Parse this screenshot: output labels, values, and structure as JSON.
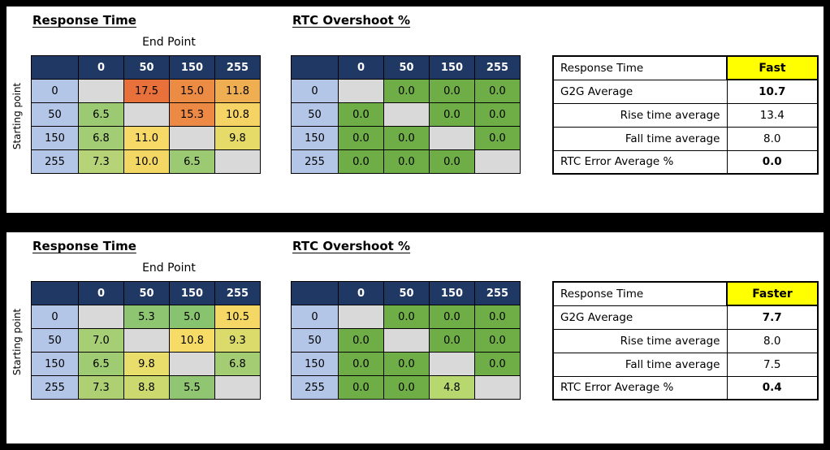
{
  "chart_data": {
    "type": "heatmap",
    "axis_labels": [
      "0",
      "50",
      "150",
      "255"
    ],
    "colors": {
      "header_bg": "#203864",
      "row_label_bg": "#B4C6E7",
      "diagonal_bg": "#D9D9D9",
      "rtc_green": "#6FAD47",
      "grade_bg": "#FFFF00"
    },
    "panels": [
      {
        "rt_title": "Response Time",
        "rtc_title": "RTC Overshoot %",
        "end_point_label": "End Point",
        "starting_point_label": "Starting point",
        "response_time_matrix": {
          "rows": [
            {
              "label": "0",
              "cells": [
                null,
                {
                  "v": "17.5",
                  "c": "#E8703A"
                },
                {
                  "v": "15.0",
                  "c": "#EC8B44"
                },
                {
                  "v": "11.8",
                  "c": "#EFAE52"
                }
              ]
            },
            {
              "label": "50",
              "cells": [
                {
                  "v": "6.5",
                  "c": "#9CCA73"
                },
                null,
                {
                  "v": "15.3",
                  "c": "#EC8944"
                },
                {
                  "v": "10.8",
                  "c": "#F5D364"
                }
              ]
            },
            {
              "label": "150",
              "cells": [
                {
                  "v": "6.8",
                  "c": "#A3CD75"
                },
                {
                  "v": "11.0",
                  "c": "#F6D966"
                },
                null,
                {
                  "v": "9.8",
                  "c": "#E6DA69"
                }
              ]
            },
            {
              "label": "255",
              "cells": [
                {
                  "v": "7.3",
                  "c": "#B6D378"
                },
                {
                  "v": "10.0",
                  "c": "#F2D765"
                },
                {
                  "v": "6.5",
                  "c": "#9CCA73"
                },
                null
              ]
            }
          ]
        },
        "rtc_matrix": {
          "rows": [
            {
              "label": "0",
              "cells": [
                null,
                {
                  "v": "0.0",
                  "c": "#6FAD47"
                },
                {
                  "v": "0.0",
                  "c": "#6FAD47"
                },
                {
                  "v": "0.0",
                  "c": "#6FAD47"
                }
              ]
            },
            {
              "label": "50",
              "cells": [
                {
                  "v": "0.0",
                  "c": "#6FAD47"
                },
                null,
                {
                  "v": "0.0",
                  "c": "#6FAD47"
                },
                {
                  "v": "0.0",
                  "c": "#6FAD47"
                }
              ]
            },
            {
              "label": "150",
              "cells": [
                {
                  "v": "0.0",
                  "c": "#6FAD47"
                },
                {
                  "v": "0.0",
                  "c": "#6FAD47"
                },
                null,
                {
                  "v": "0.0",
                  "c": "#6FAD47"
                }
              ]
            },
            {
              "label": "255",
              "cells": [
                {
                  "v": "0.0",
                  "c": "#6FAD47"
                },
                {
                  "v": "0.0",
                  "c": "#6FAD47"
                },
                {
                  "v": "0.0",
                  "c": "#6FAD47"
                },
                null
              ]
            }
          ]
        },
        "summary": {
          "header_label": "Response Time",
          "header_value": "Fast",
          "header_value_bg": "#FFFF00",
          "rows": [
            {
              "label": "G2G Average",
              "value": "10.7",
              "bold": true,
              "align": "left"
            },
            {
              "label": "Rise time average",
              "value": "13.4",
              "bold": false,
              "align": "right"
            },
            {
              "label": "Fall time average",
              "value": "8.0",
              "bold": false,
              "align": "right"
            },
            {
              "label": "RTC Error Average %",
              "value": "0.0",
              "bold": true,
              "align": "left"
            }
          ]
        }
      },
      {
        "rt_title": "Response Time",
        "rtc_title": "RTC Overshoot %",
        "end_point_label": "End Point",
        "starting_point_label": "Starting point",
        "response_time_matrix": {
          "rows": [
            {
              "label": "0",
              "cells": [
                null,
                {
                  "v": "5.3",
                  "c": "#8DC571"
                },
                {
                  "v": "5.0",
                  "c": "#88C370"
                },
                {
                  "v": "10.5",
                  "c": "#F4D765"
                }
              ]
            },
            {
              "label": "50",
              "cells": [
                {
                  "v": "7.0",
                  "c": "#A6CE74"
                },
                null,
                {
                  "v": "10.8",
                  "c": "#F6DB67"
                },
                {
                  "v": "9.3",
                  "c": "#DADB6B"
                }
              ]
            },
            {
              "label": "150",
              "cells": [
                {
                  "v": "6.5",
                  "c": "#9FCB72"
                },
                {
                  "v": "9.8",
                  "c": "#E9DE6C"
                },
                null,
                {
                  "v": "6.8",
                  "c": "#A4CD73"
                }
              ]
            },
            {
              "label": "255",
              "cells": [
                {
                  "v": "7.3",
                  "c": "#AED073"
                },
                {
                  "v": "8.8",
                  "c": "#CCD96F"
                },
                {
                  "v": "5.5",
                  "c": "#90C671"
                },
                null
              ]
            }
          ]
        },
        "rtc_matrix": {
          "rows": [
            {
              "label": "0",
              "cells": [
                null,
                {
                  "v": "0.0",
                  "c": "#6FAD47"
                },
                {
                  "v": "0.0",
                  "c": "#6FAD47"
                },
                {
                  "v": "0.0",
                  "c": "#6FAD47"
                }
              ]
            },
            {
              "label": "50",
              "cells": [
                {
                  "v": "0.0",
                  "c": "#6FAD47"
                },
                null,
                {
                  "v": "0.0",
                  "c": "#6FAD47"
                },
                {
                  "v": "0.0",
                  "c": "#6FAD47"
                }
              ]
            },
            {
              "label": "150",
              "cells": [
                {
                  "v": "0.0",
                  "c": "#6FAD47"
                },
                {
                  "v": "0.0",
                  "c": "#6FAD47"
                },
                null,
                {
                  "v": "0.0",
                  "c": "#6FAD47"
                }
              ]
            },
            {
              "label": "255",
              "cells": [
                {
                  "v": "0.0",
                  "c": "#6FAD47"
                },
                {
                  "v": "0.0",
                  "c": "#6FAD47"
                },
                {
                  "v": "4.8",
                  "c": "#B7D76F"
                },
                null
              ]
            }
          ]
        },
        "summary": {
          "header_label": "Response Time",
          "header_value": "Faster",
          "header_value_bg": "#FFFF00",
          "rows": [
            {
              "label": "G2G Average",
              "value": "7.7",
              "bold": true,
              "align": "left"
            },
            {
              "label": "Rise time average",
              "value": "8.0",
              "bold": false,
              "align": "right"
            },
            {
              "label": "Fall time average",
              "value": "7.5",
              "bold": false,
              "align": "right"
            },
            {
              "label": "RTC Error Average %",
              "value": "0.4",
              "bold": true,
              "align": "left"
            }
          ]
        }
      }
    ]
  }
}
